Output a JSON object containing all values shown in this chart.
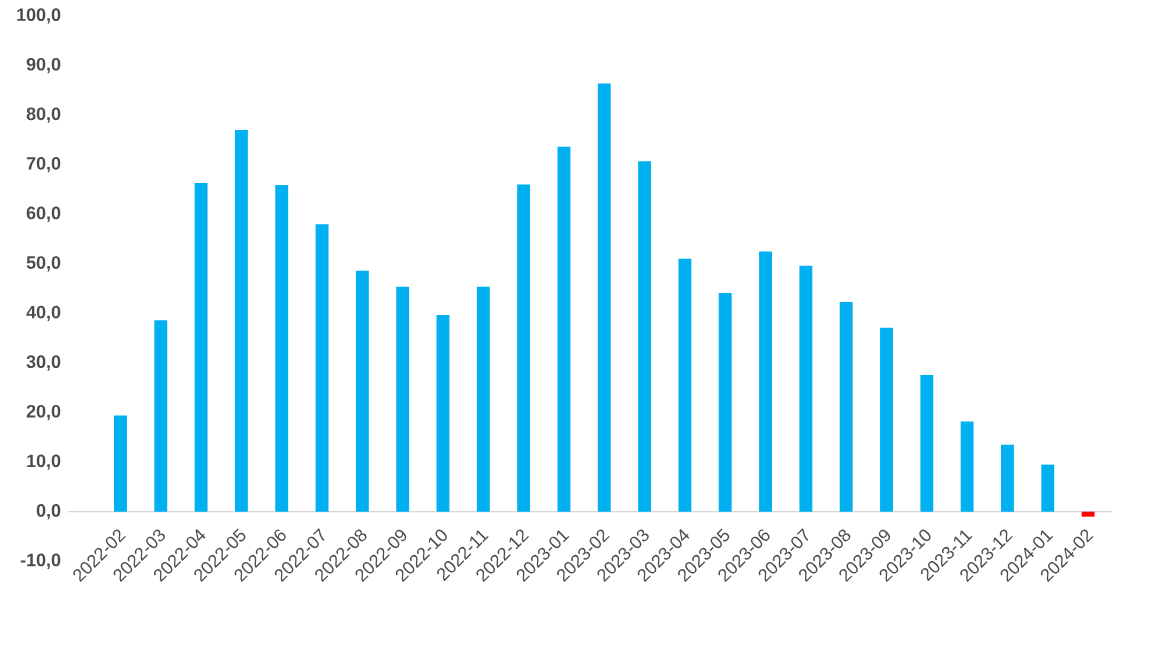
{
  "chart_data": {
    "type": "bar",
    "categories": [
      "2022-02",
      "2022-03",
      "2022-04",
      "2022-05",
      "2022-06",
      "2022-07",
      "2022-08",
      "2022-09",
      "2022-10",
      "2022-11",
      "2022-12",
      "2023-01",
      "2023-02",
      "2023-03",
      "2023-04",
      "2023-05",
      "2023-06",
      "2023-07",
      "2023-08",
      "2023-09",
      "2023-10",
      "2023-11",
      "2023-12",
      "2024-01",
      "2024-02"
    ],
    "values": [
      19.4,
      38.6,
      66.3,
      77.0,
      65.9,
      58.0,
      48.6,
      45.4,
      39.7,
      45.4,
      66.0,
      73.6,
      86.4,
      70.7,
      51.0,
      44.1,
      52.5,
      49.6,
      42.3,
      37.1,
      27.6,
      18.2,
      13.5,
      9.5,
      -1.0
    ],
    "colors": [
      "#00b0f0",
      "#00b0f0",
      "#00b0f0",
      "#00b0f0",
      "#00b0f0",
      "#00b0f0",
      "#00b0f0",
      "#00b0f0",
      "#00b0f0",
      "#00b0f0",
      "#00b0f0",
      "#00b0f0",
      "#00b0f0",
      "#00b0f0",
      "#00b0f0",
      "#00b0f0",
      "#00b0f0",
      "#00b0f0",
      "#00b0f0",
      "#00b0f0",
      "#00b0f0",
      "#00b0f0",
      "#00b0f0",
      "#00b0f0",
      "#ff0000"
    ],
    "ylim": [
      -10,
      100
    ],
    "yticks": [
      {
        "value": -10,
        "label": "-10,0"
      },
      {
        "value": 0,
        "label": "0,0"
      },
      {
        "value": 10,
        "label": "10,0"
      },
      {
        "value": 20,
        "label": "20,0"
      },
      {
        "value": 30,
        "label": "30,0"
      },
      {
        "value": 40,
        "label": "40,0"
      },
      {
        "value": 50,
        "label": "50,0"
      },
      {
        "value": 60,
        "label": "60,0"
      },
      {
        "value": 70,
        "label": "70,0"
      },
      {
        "value": 80,
        "label": "80,0"
      },
      {
        "value": 90,
        "label": "90,0"
      },
      {
        "value": 100,
        "label": "100,0"
      }
    ]
  }
}
